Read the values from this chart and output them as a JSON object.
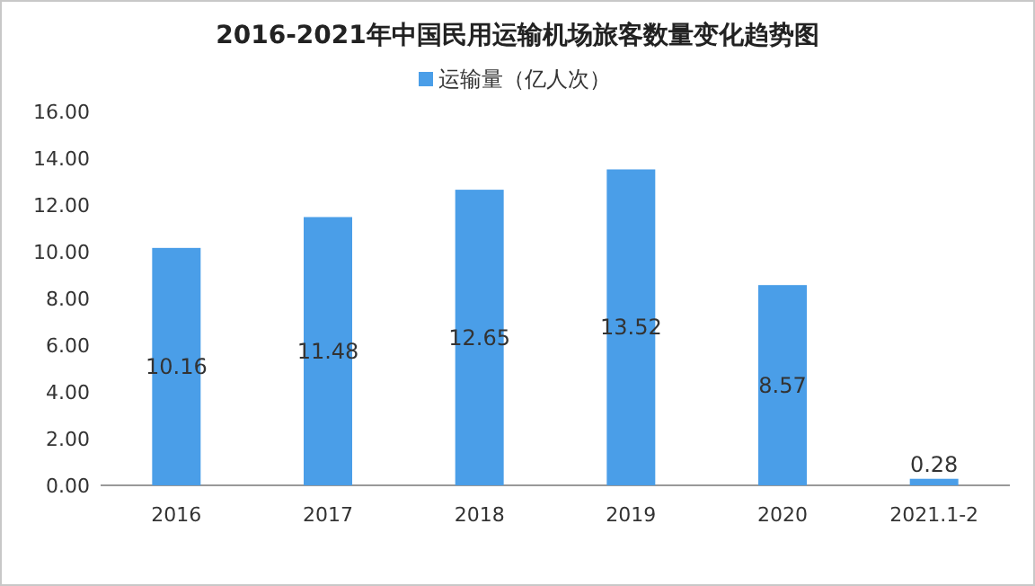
{
  "chart_data": {
    "type": "bar",
    "title": "2016-2021年中国民用运输机场旅客数量变化趋势图",
    "categories": [
      "2016",
      "2017",
      "2018",
      "2019",
      "2020",
      "2021.1-2"
    ],
    "series": [
      {
        "name": "运输量（亿人次）",
        "color": "#4a9ee8",
        "values": [
          10.16,
          11.48,
          12.65,
          13.52,
          8.57,
          0.28
        ]
      }
    ],
    "ylim": [
      0,
      16
    ],
    "yticks": [
      {
        "value": 0,
        "label": "0.00"
      },
      {
        "value": 2,
        "label": "2.00"
      },
      {
        "value": 4,
        "label": "4.00"
      },
      {
        "value": 6,
        "label": "6.00"
      },
      {
        "value": 8,
        "label": "8.00"
      },
      {
        "value": 10,
        "label": "10.00"
      },
      {
        "value": 12,
        "label": "12.00"
      },
      {
        "value": 14,
        "label": "14.00"
      },
      {
        "value": 16,
        "label": "16.00"
      }
    ],
    "data_labels": true,
    "legend": "top",
    "grid": false
  }
}
